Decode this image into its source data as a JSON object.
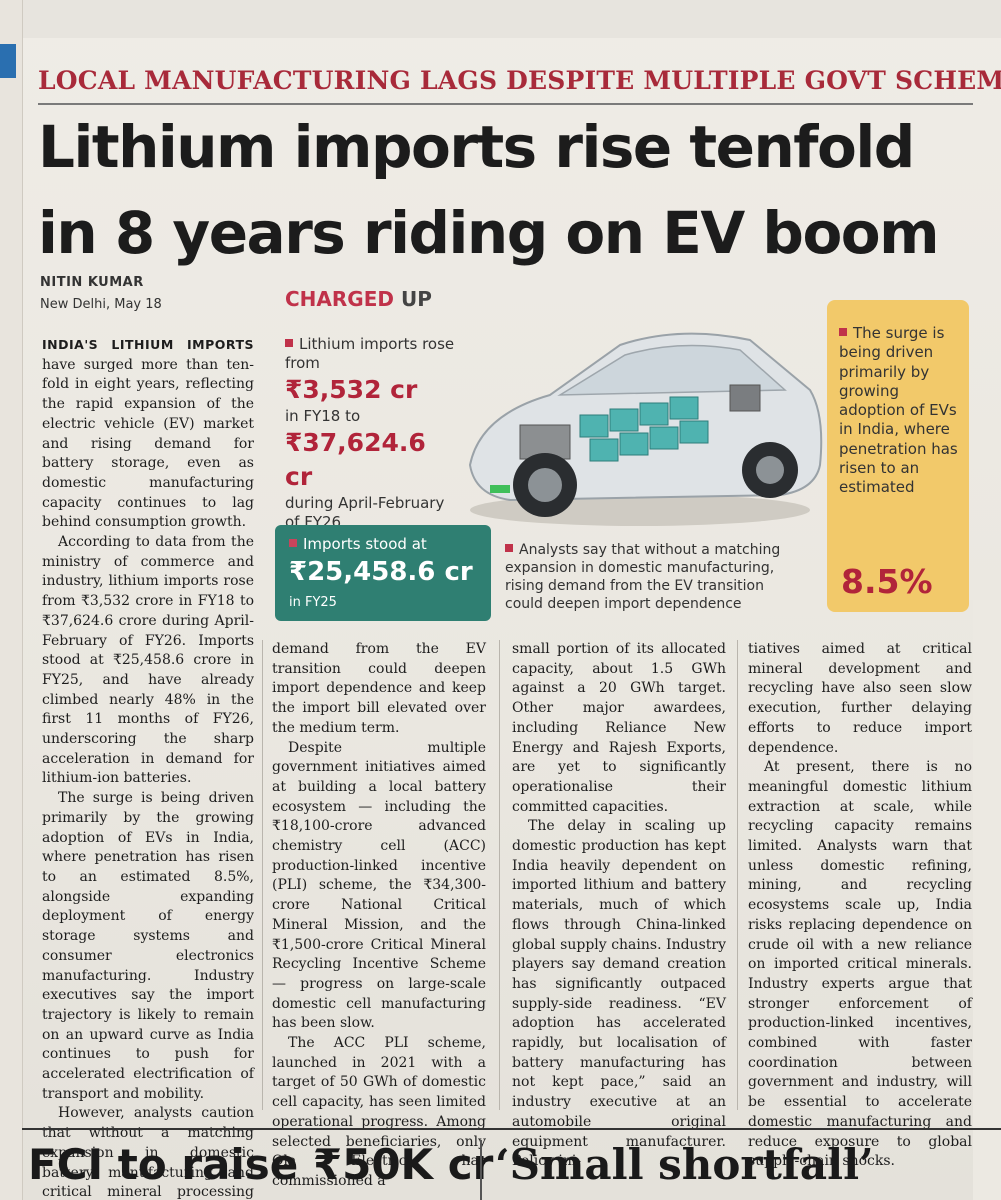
{
  "kicker": "LOCAL MANUFACTURING LAGS DESPITE MULTIPLE GOVT SCHEMES",
  "headline": {
    "line1": "Lithium imports rise tenfold",
    "line2": "in 8 years riding on EV boom"
  },
  "byline": {
    "name": "NITIN KUMAR",
    "dateline": "New Delhi, May 18"
  },
  "graphic": {
    "title_main": "CHARGED",
    "title_up": "UP",
    "block1_lead": "Lithium imports rose from",
    "block1_value1": "₹3,532 cr",
    "block1_mid": "in FY18 to",
    "block1_value2": "₹37,624.6 cr",
    "block1_tail": "during April-February of FY26",
    "green_label": "Imports stood at",
    "green_value": "₹25,458.6 cr",
    "green_tail": "in FY25",
    "analyst_text": "Analysts say that without a matching expansion in domestic manufacturing, rising demand from the EV transition could deepen import dependence",
    "yellow_text": "The surge is being driven primarily by growing adoption of EVs in India, where penetration has risen to an estimated",
    "yellow_pct": "8.5%"
  },
  "article": {
    "lead_caps": "INDIA'S LITHIUM IMPORTS",
    "col1": [
      "have surged more than ten-fold in eight years, reflecting the rapid expansion of the electric vehicle (EV) market and rising demand for battery storage, even as domestic manufacturing capacity continues to lag behind consumption growth.",
      "According to data from the ministry of commerce and industry, lithium imports rose from ₹3,532 crore in FY18 to ₹37,624.6 crore during April-February of FY26. Imports stood at ₹25,458.6 crore in FY25, and have already climbed nearly 48% in the first 11 months of FY26, underscoring the sharp acceleration in demand for lithium-ion batteries.",
      "The surge is being driven primarily by the growing adoption of EVs in India, where penetration has risen to an estimated 8.5%, alongside expanding deployment of energy storage systems and consumer electronics manufacturing. Industry executives say the import trajectory is likely to remain on an upward curve as India continues to push for accelerated electrification of transport and mobility.",
      "However, analysts caution that without a matching expansion in domestic battery manufacturing and critical mineral processing capacity, rising"
    ],
    "col2": [
      "demand from the EV transition could deepen import dependence and keep the import bill elevated over the medium term.",
      "Despite multiple government initiatives aimed at building a local battery ecosystem — including the ₹18,100-crore advanced chemistry cell (ACC) production-linked incentive (PLI) scheme, the ₹34,300-crore National Critical Mineral Mission, and the ₹1,500-crore Critical Mineral Recycling Incentive Scheme — progress on large-scale domestic cell manufacturing has been slow.",
      "The ACC PLI scheme, launched in 2021 with a target of 50 GWh of domestic cell capacity, has seen limited operational progress. Among selected beneficiaries, only Ola Electric has commissioned a"
    ],
    "col3": [
      "small portion of its allocated capacity, about 1.5 GWh against a 20 GWh target. Other major awardees, including Reliance New Energy and Rajesh Exports, are yet to significantly operationalise their committed capacities.",
      "The delay in scaling up domestic production has kept India heavily dependent on imported lithium and battery materials, much of which flows through China-linked global supply chains. Industry players say demand creation has significantly outpaced supply-side readiness. “EV adoption has accelerated rapidly, but localisation of battery manufacturing has not kept pace,” said an industry executive at an automobile original equipment manufacturer. Policy ini-"
    ],
    "col4": [
      "tiatives aimed at critical mineral development and recycling have also seen slow execution, further delaying efforts to reduce import dependence.",
      "At present, there is no meaningful domestic lithium extraction at scale, while recycling capacity remains limited. Analysts warn that unless domestic refining, mining, and recycling ecosystems scale up, India risks replacing dependence on crude oil with a new reliance on imported critical minerals. Industry experts argue that stronger enforcement of production-linked incentives, combined with faster coordination between government and industry, will be essential to accelerate domestic manufacturing and reduce exposure to global supply-chain shocks."
    ]
  },
  "bottom_headlines": {
    "left": "FCI to raise ₹50K cr",
    "right": "‘Small shortfall’"
  }
}
